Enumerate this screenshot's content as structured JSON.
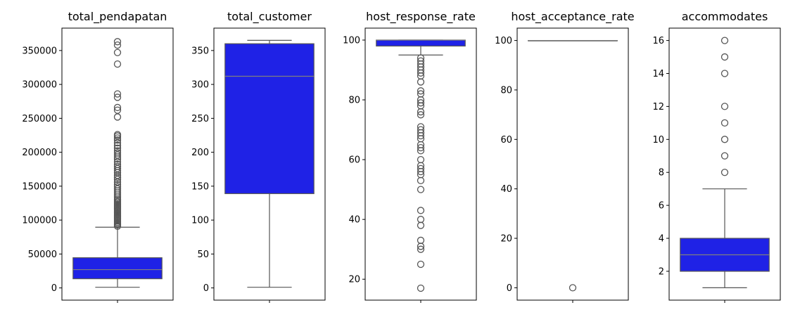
{
  "figure": {
    "box_color": "#1f22e6",
    "median_color": "#7f7f7f",
    "whisker_color": "#555555",
    "flier_color": "#555555"
  },
  "chart_data": [
    {
      "type": "box",
      "title": "total_pendapatan",
      "ylim": [
        -18000,
        383000
      ],
      "yticks": [
        0,
        50000,
        100000,
        150000,
        200000,
        250000,
        300000,
        350000
      ],
      "ytick_labels": [
        "0",
        "50000",
        "100000",
        "150000",
        "200000",
        "250000",
        "300000",
        "350000"
      ],
      "whisker_low": 1000,
      "q1": 13500,
      "median": 27000,
      "q3": 44500,
      "whisker_high": 89500,
      "outliers": [
        91000,
        93000,
        95000,
        97000,
        99000,
        101000,
        103000,
        105000,
        107000,
        109000,
        111000,
        113000,
        115000,
        117000,
        119000,
        121000,
        123000,
        125000,
        127000,
        129000,
        131000,
        134000,
        137000,
        140000,
        143000,
        146000,
        149000,
        152000,
        156000,
        160000,
        163000,
        166000,
        170000,
        173000,
        176000,
        179000,
        182000,
        186000,
        190000,
        193000,
        196000,
        199000,
        202000,
        206000,
        210000,
        214000,
        218000,
        221000,
        224000,
        226000,
        252000,
        262000,
        266000,
        281000,
        286000,
        330000,
        347000,
        358000,
        363000
      ]
    },
    {
      "type": "box",
      "title": "total_customer",
      "ylim": [
        -18,
        383
      ],
      "yticks": [
        0,
        50,
        100,
        150,
        200,
        250,
        300,
        350
      ],
      "ytick_labels": [
        "0",
        "50",
        "100",
        "150",
        "200",
        "250",
        "300",
        "350"
      ],
      "whisker_low": 1,
      "q1": 139,
      "median": 312,
      "q3": 360,
      "whisker_high": 365,
      "outliers": []
    },
    {
      "type": "box",
      "title": "host_response_rate",
      "ylim": [
        13,
        104
      ],
      "yticks": [
        20,
        40,
        60,
        80,
        100
      ],
      "ytick_labels": [
        "20",
        "40",
        "60",
        "80",
        "100"
      ],
      "whisker_low": 95,
      "q1": 98,
      "median": 100,
      "q3": 100,
      "whisker_high": 100,
      "outliers": [
        17,
        25,
        30,
        31,
        33,
        38,
        40,
        43,
        50,
        53,
        55,
        56,
        57,
        58,
        60,
        63,
        64,
        65,
        67,
        68,
        69,
        70,
        71,
        75,
        76,
        78,
        79,
        80,
        82,
        83,
        86,
        88,
        89,
        90,
        91,
        92,
        93,
        94
      ]
    },
    {
      "type": "box",
      "title": "host_acceptance_rate",
      "ylim": [
        -5,
        105
      ],
      "yticks": [
        0,
        20,
        40,
        60,
        80,
        100
      ],
      "ytick_labels": [
        "0",
        "20",
        "40",
        "60",
        "80",
        "100"
      ],
      "whisker_low": 100,
      "q1": 100,
      "median": 100,
      "q3": 100,
      "whisker_high": 100,
      "outliers": [
        0
      ]
    },
    {
      "type": "box",
      "title": "accommodates",
      "ylim": [
        0.25,
        16.75
      ],
      "yticks": [
        2,
        4,
        6,
        8,
        10,
        12,
        14,
        16
      ],
      "ytick_labels": [
        "2",
        "4",
        "6",
        "8",
        "10",
        "12",
        "14",
        "16"
      ],
      "whisker_low": 1,
      "q1": 2,
      "median": 3,
      "q3": 4,
      "whisker_high": 7,
      "outliers": [
        8,
        9,
        10,
        11,
        12,
        14,
        15,
        16
      ]
    }
  ]
}
